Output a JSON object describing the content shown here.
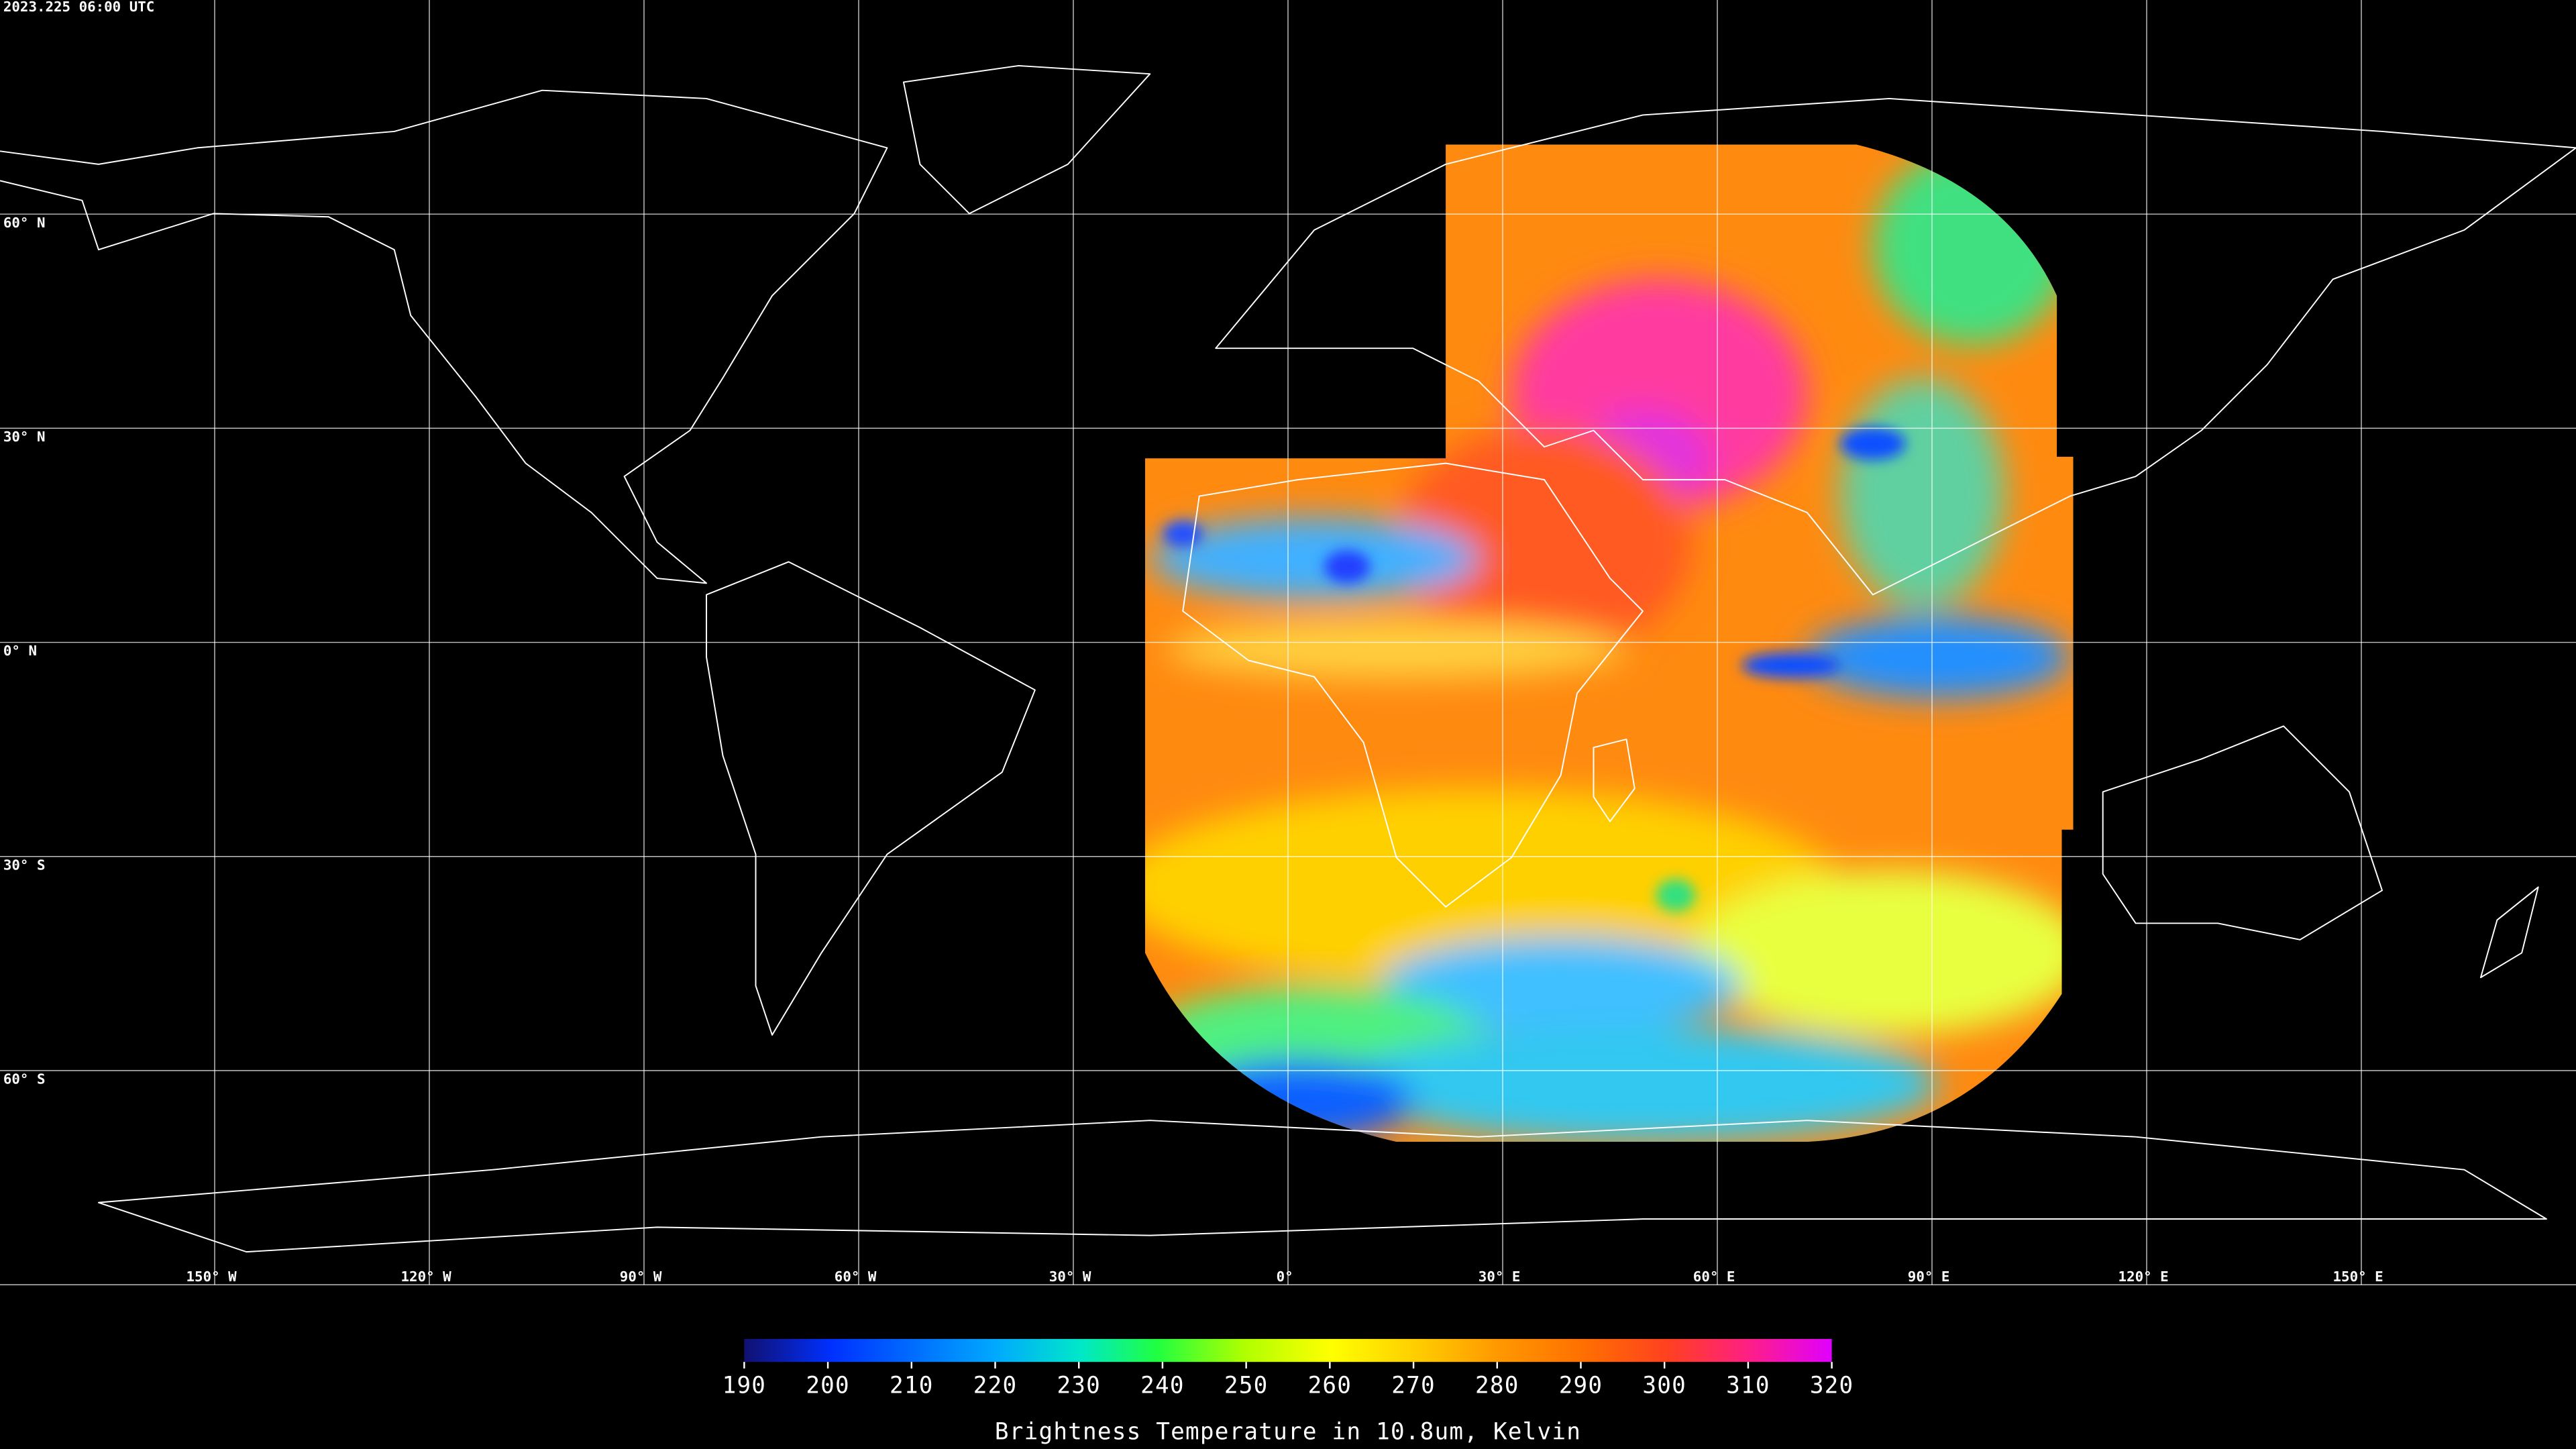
{
  "timestamp": "2023.225 06:00 UTC",
  "map": {
    "lonlim": [
      -180,
      180
    ],
    "latlim": [
      -90,
      90
    ],
    "latticks": [
      {
        "value": 60,
        "label": "60° N"
      },
      {
        "value": 30,
        "label": "30° N"
      },
      {
        "value": 0,
        "label": "0° N"
      },
      {
        "value": -30,
        "label": "30° S"
      },
      {
        "value": -60,
        "label": "60° S"
      }
    ],
    "lonticks": [
      {
        "value": -150,
        "label": "150° W"
      },
      {
        "value": -120,
        "label": "120° W"
      },
      {
        "value": -90,
        "label": "90° W"
      },
      {
        "value": -60,
        "label": "60° W"
      },
      {
        "value": -30,
        "label": "30° W"
      },
      {
        "value": 0,
        "label": "0°"
      },
      {
        "value": 30,
        "label": "30° E"
      },
      {
        "value": 60,
        "label": "60° E"
      },
      {
        "value": 90,
        "label": "90° E"
      },
      {
        "value": 120,
        "label": "120° E"
      },
      {
        "value": 150,
        "label": "150° E"
      }
    ]
  },
  "colorbar": {
    "range": [
      190,
      320
    ],
    "ticks": [
      190,
      200,
      210,
      220,
      230,
      240,
      250,
      260,
      270,
      280,
      290,
      300,
      310,
      320
    ],
    "label": "Brightness Temperature in 10.8um, Kelvin"
  }
}
